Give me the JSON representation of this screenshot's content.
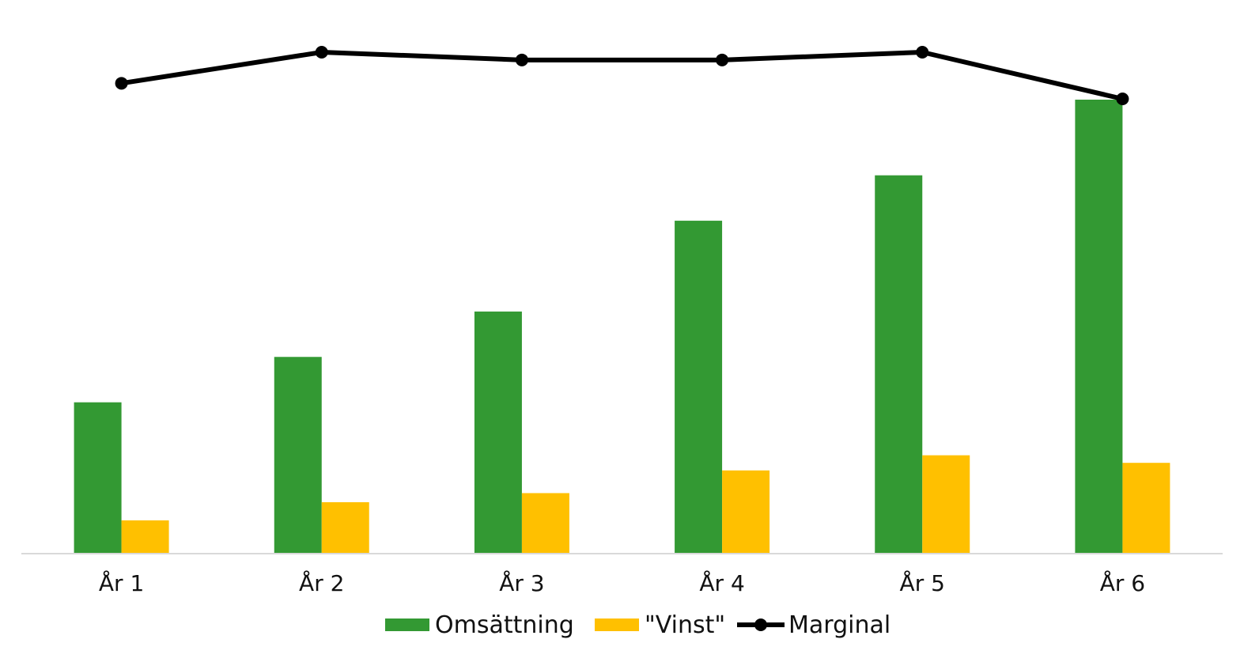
{
  "chart_data": {
    "type": "bar",
    "categories": [
      "År 1",
      "År 2",
      "År 3",
      "År 4",
      "År 5",
      "År 6"
    ],
    "series": [
      {
        "name": "Omsättning",
        "kind": "bar",
        "values": [
          10,
          13,
          16,
          22,
          25,
          30
        ]
      },
      {
        "name": "\"Vinst\"",
        "kind": "bar",
        "values": [
          2.2,
          3.4,
          4.0,
          5.5,
          6.5,
          6.0
        ]
      },
      {
        "name": "Marginal",
        "kind": "line",
        "values": [
          0.22,
          0.26,
          0.25,
          0.25,
          0.26,
          0.2
        ]
      }
    ],
    "ylim": [
      0,
      30
    ],
    "line_ylim": [
      0,
      0.3
    ],
    "grid": false,
    "legend": "bottom",
    "title": "",
    "xlabel": "",
    "ylabel": "",
    "colors": {
      "Omsättning": "#339933",
      "\"Vinst\"": "#FFC000",
      "Marginal": "#000000",
      "axis": "#d9d9d9"
    }
  }
}
